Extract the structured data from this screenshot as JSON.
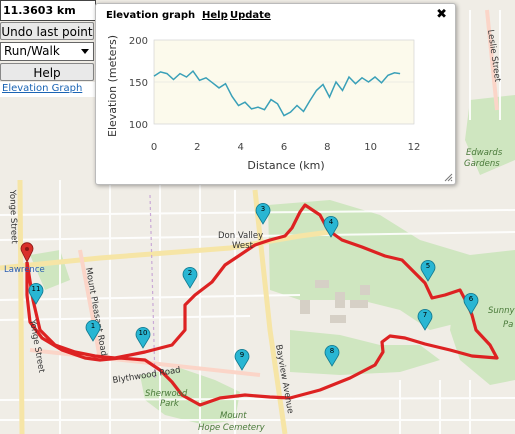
{
  "panel": {
    "distance": "11.3603 km",
    "undo_label": "Undo last point",
    "mode_value": "Run/Walk",
    "help_label": "Help",
    "elevation_link": "Elevation Graph"
  },
  "popup": {
    "title": "Elevation graph",
    "help_link": "Help",
    "update_link": "Update",
    "close_glyph": "✖"
  },
  "chart_data": {
    "type": "line",
    "xlabel": "Distance (km)",
    "ylabel": "Elevation (meters)",
    "xlim": [
      0,
      12
    ],
    "ylim": [
      100,
      200
    ],
    "x_ticks": [
      "0",
      "2",
      "4",
      "6",
      "8",
      "10",
      "12"
    ],
    "y_ticks": [
      "100",
      "150",
      "200"
    ],
    "grid": true,
    "color": "#3aa0b8",
    "series": [
      {
        "x": [
          0,
          0.3,
          0.6,
          0.9,
          1.2,
          1.5,
          1.8,
          2.1,
          2.4,
          2.7,
          3.0,
          3.3,
          3.6,
          3.9,
          4.2,
          4.5,
          4.8,
          5.1,
          5.4,
          5.7,
          6.0,
          6.3,
          6.6,
          6.9,
          7.2,
          7.5,
          7.8,
          8.1,
          8.4,
          8.7,
          9.0,
          9.3,
          9.6,
          9.9,
          10.2,
          10.5,
          10.8,
          11.1,
          11.36
        ],
        "y": [
          157,
          162,
          160,
          153,
          160,
          156,
          163,
          152,
          155,
          149,
          143,
          148,
          133,
          122,
          126,
          118,
          120,
          117,
          129,
          124,
          110,
          114,
          122,
          115,
          128,
          140,
          147,
          132,
          150,
          140,
          156,
          148,
          155,
          150,
          156,
          149,
          158,
          161,
          160
        ]
      }
    ]
  },
  "map": {
    "labels": {
      "don_valley_1": "Don Valley",
      "don_valley_2": "West",
      "lawrence": "Lawrence",
      "blythwood": "Blythwood Road",
      "sherwood_1": "Sherwood",
      "sherwood_2": "Park",
      "mount_hope_1": "Mount",
      "mount_hope_2": "Hope Cemetery",
      "bayview": "Bayview Avenue",
      "mount_pleasant": "Mount Pleasant Road",
      "yonge_top": "Yonge Street",
      "yonge_bottom": "Yonge Street",
      "edwards_1": "Edwards",
      "edwards_2": "Gardens",
      "leslie": "Leslie Street",
      "sunny_1": "Sunny",
      "sunny_2": "Pa"
    },
    "markers": [
      "1",
      "2",
      "3",
      "4",
      "5",
      "6",
      "7",
      "8",
      "9",
      "10",
      "11"
    ],
    "route_color": "#dd2222",
    "marker_color": "#29b6d3",
    "park_color": "#cfe8c2"
  }
}
